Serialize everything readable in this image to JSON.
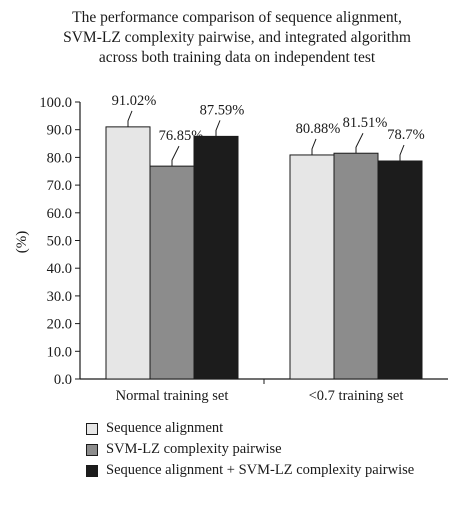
{
  "chart_data": {
    "type": "bar",
    "title_lines": [
      "The performance comparison of sequence alignment,",
      "SVM-LZ complexity pairwise, and integrated algorithm",
      "across both training data on independent test"
    ],
    "ylabel": "(%)",
    "xlabel": "",
    "ylim": [
      0,
      100
    ],
    "yticks": [
      "0.0",
      "10.0",
      "20.0",
      "30.0",
      "40.0",
      "50.0",
      "60.0",
      "70.0",
      "80.0",
      "90.0",
      "100.0"
    ],
    "categories": [
      "Normal training set",
      "<0.7 training set"
    ],
    "series": [
      {
        "name": "Sequence alignment",
        "color": "#e6e6e6",
        "values": [
          91.02,
          80.88
        ],
        "labels": [
          "91.02%",
          "80.88%"
        ]
      },
      {
        "name": "SVM-LZ complexity pairwise",
        "color": "#8c8c8c",
        "values": [
          76.85,
          81.51
        ],
        "labels": [
          "76.85%",
          "81.51%"
        ]
      },
      {
        "name": "Sequence alignment + SVM-LZ complexity pairwise",
        "color": "#1c1c1c",
        "values": [
          87.59,
          78.7
        ],
        "labels": [
          "87.59%",
          "78.7%"
        ]
      }
    ],
    "grid": false,
    "legend_position": "bottom"
  }
}
